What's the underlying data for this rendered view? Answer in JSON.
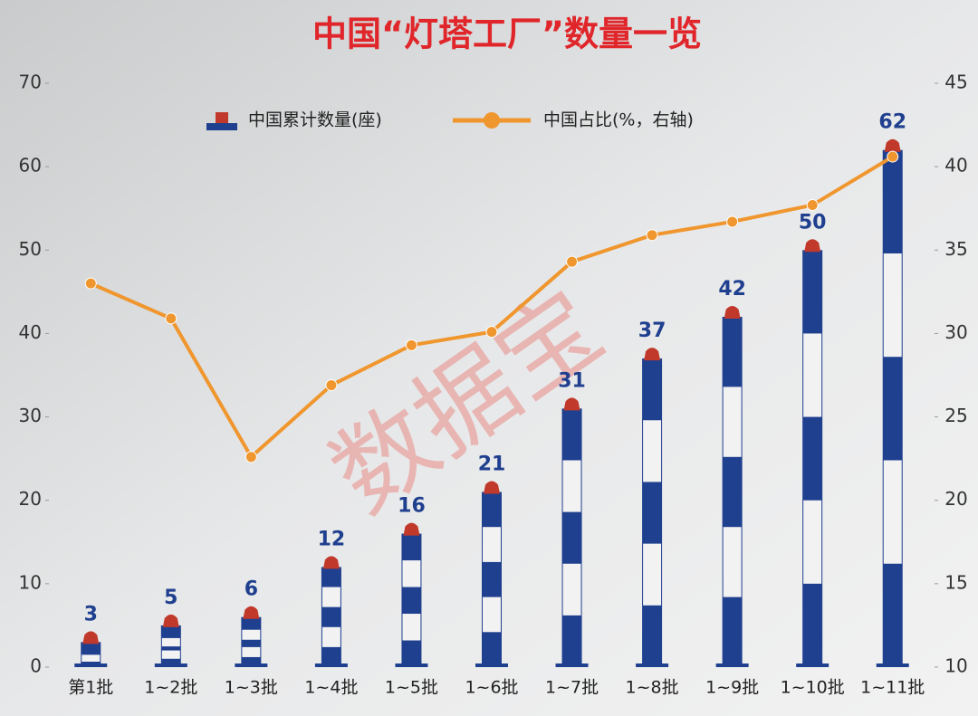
{
  "chart_data": {
    "type": "bar-line",
    "title": "中国“灯塔工厂”数量一览",
    "watermark": "数据宝",
    "categories": [
      "第1批",
      "1~2批",
      "1~3批",
      "1~4批",
      "1~5批",
      "1~6批",
      "1~7批",
      "1~8批",
      "1~9批",
      "1~10批",
      "1~11批"
    ],
    "series": [
      {
        "name": "中国累计数量(座)",
        "color": "#1f3f8f",
        "values": [
          3,
          5,
          6,
          12,
          16,
          21,
          31,
          37,
          42,
          50,
          62
        ]
      },
      {
        "name": "中国占比(%，右轴)",
        "color": "#f0962e",
        "axis": "y2",
        "values": [
          33.0,
          30.9,
          22.6,
          26.9,
          29.3,
          30.1,
          34.3,
          35.9,
          36.7,
          37.7,
          40.6
        ]
      }
    ],
    "ylim": [
      0,
      70
    ],
    "yticks": [
      0,
      10,
      20,
      30,
      40,
      50,
      60,
      70
    ],
    "y2lim": [
      10,
      45
    ],
    "y2ticks": [
      10,
      15,
      20,
      25,
      30,
      35,
      40,
      45
    ]
  }
}
